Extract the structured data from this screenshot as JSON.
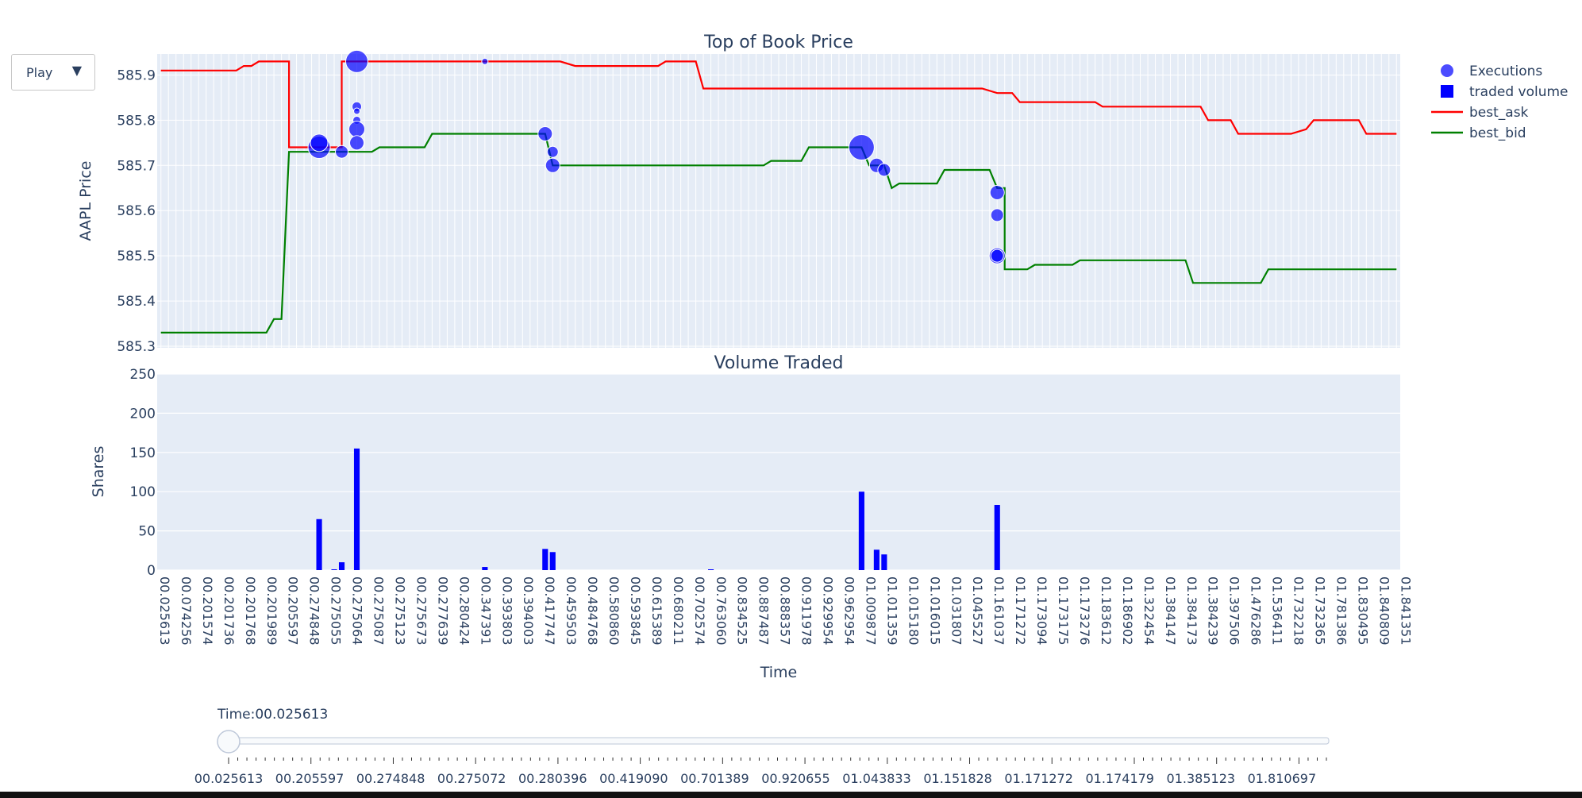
{
  "controls": {
    "play_label": "Play",
    "play_arrow_icon": "triangle-down",
    "slider_prefix": "Time:",
    "slider_current": "00.025613",
    "slider_position": 0,
    "slider_steps": 120,
    "slider_ticks": [
      "00.025613",
      "00.205597",
      "00.274848",
      "00.275072",
      "00.280396",
      "00.419090",
      "00.701389",
      "00.920655",
      "01.043833",
      "01.151828",
      "01.171272",
      "01.174179",
      "01.385123",
      "01.810697"
    ]
  },
  "colors": {
    "plot_bg": "#e5ecf6",
    "grid": "#ffffff",
    "text": "#2a3f5f",
    "ask": "#ff0000",
    "bid": "#008000",
    "exec": "#0000ff",
    "volume": "#0000ff"
  },
  "chart_data": [
    {
      "type": "line",
      "title": "Top of Book Price",
      "xlabel": "",
      "ylabel": "AAPL Price",
      "ylim": [
        585.3,
        585.95
      ],
      "yticks": [
        585.3,
        585.4,
        585.5,
        585.6,
        585.7,
        585.8,
        585.9
      ],
      "xticks": [
        "00.025613",
        "00.074256",
        "00.201574",
        "00.201736",
        "00.201768",
        "00.201989",
        "00.205597",
        "00.274848",
        "00.275055",
        "00.275064",
        "00.275087",
        "00.275123",
        "00.275673",
        "00.277639",
        "00.280424",
        "00.347391",
        "00.393803",
        "00.394003",
        "00.417747",
        "00.459503",
        "00.484768",
        "00.580860",
        "00.593845",
        "00.615389",
        "00.680211",
        "00.702574",
        "00.763060",
        "00.834525",
        "00.887487",
        "00.888357",
        "00.911978",
        "00.929954",
        "00.962954",
        "01.009877",
        "01.011359",
        "01.015180",
        "01.016015",
        "01.031807",
        "01.045527",
        "01.161037",
        "01.171272",
        "01.173094",
        "01.173175",
        "01.173276",
        "01.183612",
        "01.186902",
        "01.322454",
        "01.384147",
        "01.384173",
        "01.384239",
        "01.397506",
        "01.476286",
        "01.536411",
        "01.732218",
        "01.732365",
        "01.781386",
        "01.830495",
        "01.840809",
        "01.841351"
      ],
      "grid": true,
      "legend": "right",
      "series": [
        {
          "name": "best_ask",
          "color": "#ff0000",
          "points": [
            [
              0,
              585.91
            ],
            [
              7,
              585.91
            ],
            [
              9,
              585.91
            ],
            [
              10,
              585.91
            ],
            [
              11,
              585.92
            ],
            [
              12,
              585.92
            ],
            [
              13,
              585.93
            ],
            [
              17,
              585.93
            ],
            [
              17,
              585.74
            ],
            [
              24,
              585.74
            ],
            [
              24,
              585.93
            ],
            [
              53,
              585.93
            ],
            [
              55,
              585.92
            ],
            [
              66,
              585.92
            ],
            [
              67,
              585.93
            ],
            [
              71,
              585.93
            ],
            [
              72,
              585.87
            ],
            [
              109,
              585.87
            ],
            [
              111,
              585.86
            ],
            [
              113,
              585.86
            ],
            [
              114,
              585.84
            ],
            [
              124,
              585.84
            ],
            [
              125,
              585.83
            ],
            [
              138,
              585.83
            ],
            [
              139,
              585.8
            ],
            [
              142,
              585.8
            ],
            [
              143,
              585.77
            ],
            [
              150,
              585.77
            ],
            [
              152,
              585.78
            ],
            [
              153,
              585.8
            ],
            [
              159,
              585.8
            ],
            [
              160,
              585.77
            ],
            [
              164,
              585.77
            ]
          ]
        },
        {
          "name": "best_bid",
          "color": "#008000",
          "points": [
            [
              0,
              585.33
            ],
            [
              14,
              585.33
            ],
            [
              15,
              585.36
            ],
            [
              16,
              585.36
            ],
            [
              17,
              585.73
            ],
            [
              24,
              585.73
            ],
            [
              28,
              585.73
            ],
            [
              29,
              585.74
            ],
            [
              35,
              585.74
            ],
            [
              36,
              585.77
            ],
            [
              51,
              585.77
            ],
            [
              52,
              585.7
            ],
            [
              80,
              585.7
            ],
            [
              81,
              585.71
            ],
            [
              85,
              585.71
            ],
            [
              86,
              585.74
            ],
            [
              93,
              585.74
            ],
            [
              94,
              585.7
            ],
            [
              96,
              585.7
            ],
            [
              97,
              585.65
            ],
            [
              98,
              585.66
            ],
            [
              103,
              585.66
            ],
            [
              104,
              585.69
            ],
            [
              110,
              585.69
            ],
            [
              111,
              585.65
            ],
            [
              112,
              585.65
            ],
            [
              112,
              585.47
            ],
            [
              115,
              585.47
            ],
            [
              116,
              585.48
            ],
            [
              121,
              585.48
            ],
            [
              122,
              585.49
            ],
            [
              136,
              585.49
            ],
            [
              137,
              585.44
            ],
            [
              146,
              585.44
            ],
            [
              147,
              585.47
            ],
            [
              164,
              585.47
            ]
          ]
        },
        {
          "name": "Executions",
          "type": "scatter",
          "color": "#0000ff",
          "points": [
            [
              21,
              585.74,
              14
            ],
            [
              21,
              585.75,
              11
            ],
            [
              24,
              585.73,
              8
            ],
            [
              26,
              585.93,
              14
            ],
            [
              26,
              585.83,
              6
            ],
            [
              26,
              585.82,
              4
            ],
            [
              26,
              585.8,
              5
            ],
            [
              26,
              585.78,
              10
            ],
            [
              26,
              585.75,
              9
            ],
            [
              43,
              585.93,
              4
            ],
            [
              51,
              585.77,
              9
            ],
            [
              52,
              585.73,
              7
            ],
            [
              52,
              585.7,
              9
            ],
            [
              93,
              585.74,
              16
            ],
            [
              95,
              585.7,
              9
            ],
            [
              96,
              585.69,
              8
            ],
            [
              111,
              585.64,
              9
            ],
            [
              111,
              585.59,
              8
            ],
            [
              111,
              585.5,
              10
            ],
            [
              111,
              585.5,
              8
            ]
          ]
        }
      ]
    },
    {
      "type": "bar",
      "title": "Volume Traded",
      "xlabel": "Time",
      "ylabel": "Shares",
      "ylim": [
        0,
        250
      ],
      "yticks": [
        0,
        50,
        100,
        150,
        200,
        250
      ],
      "grid": true,
      "series": [
        {
          "name": "traded volume",
          "color": "#0000ff",
          "bars": [
            [
              21,
              65
            ],
            [
              23,
              1
            ],
            [
              24,
              10
            ],
            [
              26,
              155
            ],
            [
              43,
              4
            ],
            [
              51,
              27
            ],
            [
              52,
              23
            ],
            [
              73,
              1
            ],
            [
              93,
              100
            ],
            [
              95,
              26
            ],
            [
              96,
              20
            ],
            [
              111,
              83
            ]
          ]
        }
      ]
    }
  ]
}
